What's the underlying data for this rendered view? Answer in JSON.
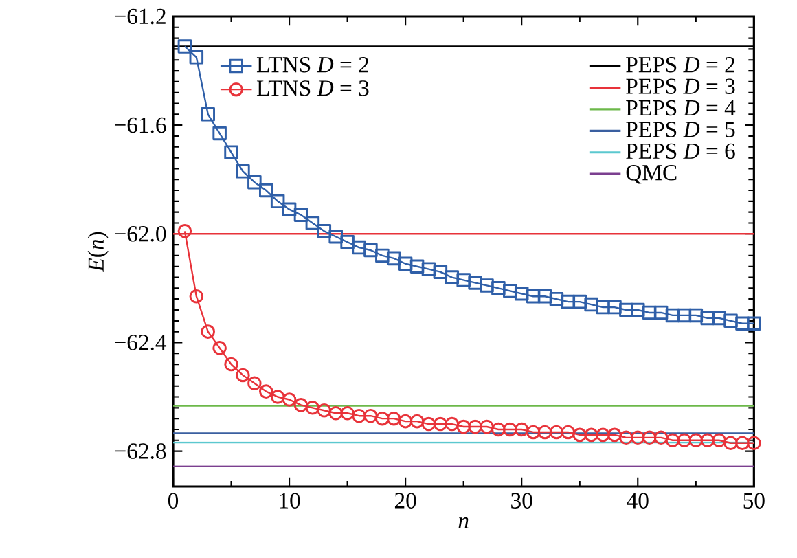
{
  "chart_data": {
    "type": "line",
    "xlabel": "*n*",
    "ylabel": "*E*(*n*)",
    "xlim": [
      0,
      50
    ],
    "xticks": [
      0,
      10,
      20,
      30,
      40,
      50
    ],
    "ylim": [
      -62.93,
      -61.2
    ],
    "yticks": [
      {
        "value": -61.2,
        "label": "−61.2"
      },
      {
        "value": -61.6,
        "label": "−61.6"
      },
      {
        "value": -62.0,
        "label": "−62.0"
      },
      {
        "value": -62.4,
        "label": "−62.4"
      },
      {
        "value": -62.8,
        "label": "−62.8"
      }
    ],
    "legend": "top right",
    "series": [
      {
        "name": "LTNS *D* = 2",
        "color": "#2f5fa8",
        "marker": "square",
        "x": [
          1,
          2,
          3,
          4,
          5,
          6,
          7,
          8,
          9,
          10,
          11,
          12,
          13,
          14,
          15,
          16,
          17,
          18,
          19,
          20,
          21,
          22,
          23,
          24,
          25,
          26,
          27,
          28,
          29,
          30,
          31,
          32,
          33,
          34,
          35,
          36,
          37,
          38,
          39,
          40,
          41,
          42,
          43,
          44,
          45,
          46,
          47,
          48,
          49,
          50
        ],
        "values": [
          -61.31,
          -61.35,
          -61.56,
          -61.63,
          -61.7,
          -61.77,
          -61.81,
          -61.84,
          -61.88,
          -61.91,
          -61.93,
          -61.96,
          -61.99,
          -62.01,
          -62.03,
          -62.05,
          -62.06,
          -62.08,
          -62.09,
          -62.11,
          -62.12,
          -62.13,
          -62.14,
          -62.16,
          -62.17,
          -62.18,
          -62.19,
          -62.2,
          -62.21,
          -62.22,
          -62.23,
          -62.23,
          -62.24,
          -62.25,
          -62.25,
          -62.26,
          -62.27,
          -62.27,
          -62.28,
          -62.28,
          -62.29,
          -62.29,
          -62.3,
          -62.3,
          -62.3,
          -62.31,
          -62.31,
          -62.32,
          -62.33,
          -62.33
        ]
      },
      {
        "name": "LTNS *D* = 3",
        "color": "#e8333a",
        "marker": "circle",
        "x": [
          1,
          2,
          3,
          4,
          5,
          6,
          7,
          8,
          9,
          10,
          11,
          12,
          13,
          14,
          15,
          16,
          17,
          18,
          19,
          20,
          21,
          22,
          23,
          24,
          25,
          26,
          27,
          28,
          29,
          30,
          31,
          32,
          33,
          34,
          35,
          36,
          37,
          38,
          39,
          40,
          41,
          42,
          43,
          44,
          45,
          46,
          47,
          48,
          49,
          50
        ],
        "values": [
          -61.99,
          -62.23,
          -62.36,
          -62.42,
          -62.48,
          -62.52,
          -62.55,
          -62.58,
          -62.6,
          -62.61,
          -62.63,
          -62.64,
          -62.65,
          -62.66,
          -62.66,
          -62.67,
          -62.67,
          -62.68,
          -62.68,
          -62.69,
          -62.69,
          -62.7,
          -62.7,
          -62.7,
          -62.71,
          -62.71,
          -62.71,
          -62.72,
          -62.72,
          -62.72,
          -62.73,
          -62.73,
          -62.73,
          -62.73,
          -62.74,
          -62.74,
          -62.74,
          -62.74,
          -62.75,
          -62.75,
          -62.75,
          -62.75,
          -62.76,
          -62.76,
          -62.76,
          -62.76,
          -62.76,
          -62.77,
          -62.77,
          -62.77
        ]
      },
      {
        "name": "PEPS *D* = 2",
        "color": "#000000",
        "marker": "none",
        "x": [
          0,
          50
        ],
        "values": [
          -61.31,
          -61.31
        ]
      },
      {
        "name": "PEPS *D* = 3",
        "color": "#e8333a",
        "marker": "none",
        "x": [
          0,
          50
        ],
        "values": [
          -62.0,
          -62.0
        ]
      },
      {
        "name": "PEPS *D* = 4",
        "color": "#6cb84a",
        "marker": "none",
        "x": [
          0,
          50
        ],
        "values": [
          -62.633,
          -62.633
        ]
      },
      {
        "name": "PEPS *D* = 5",
        "color": "#3a5fa0",
        "marker": "none",
        "x": [
          0,
          50
        ],
        "values": [
          -62.734,
          -62.734
        ]
      },
      {
        "name": "PEPS *D* = 6",
        "color": "#5bc8cf",
        "marker": "none",
        "x": [
          0,
          50
        ],
        "values": [
          -62.768,
          -62.768
        ]
      },
      {
        "name": "QMC",
        "color": "#7b3f8f",
        "marker": "none",
        "x": [
          0,
          50
        ],
        "values": [
          -62.856,
          -62.856
        ]
      }
    ]
  }
}
